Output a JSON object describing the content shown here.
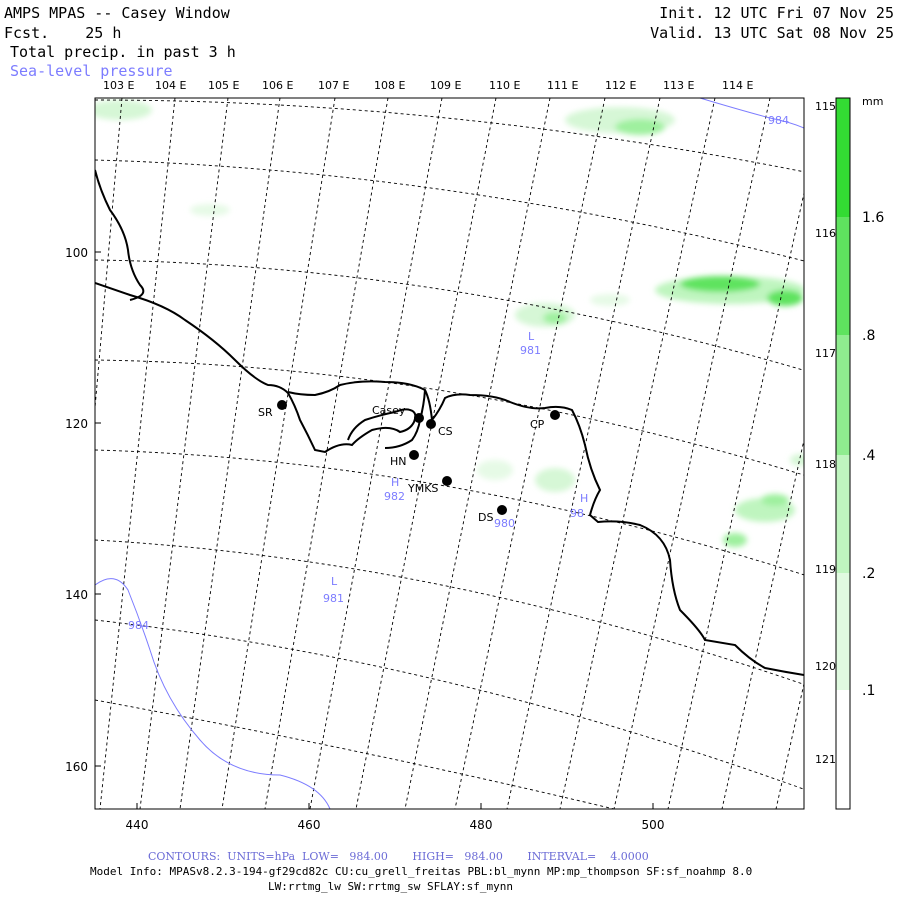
{
  "header": {
    "title": "AMPS MPAS -- Casey Window",
    "forecast": "Fcst.    25 h",
    "field": "Total precip. in past 3 h",
    "overlay": "Sea-level pressure",
    "init": "Init. 12 UTC Fri 07 Nov 25",
    "valid": "Valid. 13 UTC Sat 08 Nov 25"
  },
  "axes": {
    "x_ticks": [
      "440",
      "460",
      "480",
      "500"
    ],
    "y_ticks": [
      "100",
      "120",
      "140",
      "160"
    ],
    "lon_top": [
      "103 E",
      "104 E",
      "105 E",
      "106 E",
      "107 E",
      "108 E",
      "109 E",
      "110 E",
      "111 E",
      "112 E",
      "113 E",
      "114 E"
    ],
    "lon_right": [
      "115 E",
      "116 E",
      "117 E",
      "118 E",
      "119 E",
      "120 E",
      "121 E"
    ]
  },
  "stations": [
    {
      "label": "SR"
    },
    {
      "label": "Casey"
    },
    {
      "label": "CS"
    },
    {
      "label": "HN"
    },
    {
      "label": "YMKS"
    },
    {
      "label": "DS"
    },
    {
      "label": "CP"
    }
  ],
  "pressure_labels": [
    {
      "text": "984"
    },
    {
      "text": "L"
    },
    {
      "text": "981"
    },
    {
      "text": "H"
    },
    {
      "text": "982"
    },
    {
      "text": "980"
    },
    {
      "text": "98"
    },
    {
      "text": "L"
    },
    {
      "text": "981"
    },
    {
      "text": "984"
    }
  ],
  "colorbar": {
    "unit": "mm",
    "labels": [
      "1.6",
      ".8",
      ".4",
      ".2",
      ".1"
    ],
    "colors": [
      "#ffffff",
      "#e0fae0",
      "#bff5bf",
      "#8fec8f",
      "#5fe35f",
      "#33db33"
    ]
  },
  "footer": {
    "contours": "CONTOURS:  UNITS=hPa  LOW=   984.00       HIGH=   984.00       INTERVAL=    4.0000",
    "model_info": "Model Info: MPASv8.2.3-194-gf29cd82c CU:cu_grell_freitas PBL:bl_mynn MP:mp_thompson SF:sf_noahmp 8.0",
    "model_info2": "LW:rrtmg_lw SW:rrtmg_sw SFLAY:sf_mynn"
  },
  "colors": {
    "pressure": "#7c7cff",
    "coast": "#000000",
    "precip_light": "#d6f7d6",
    "precip_mid": "#9ff09f",
    "precip_strong": "#5fe35f"
  }
}
